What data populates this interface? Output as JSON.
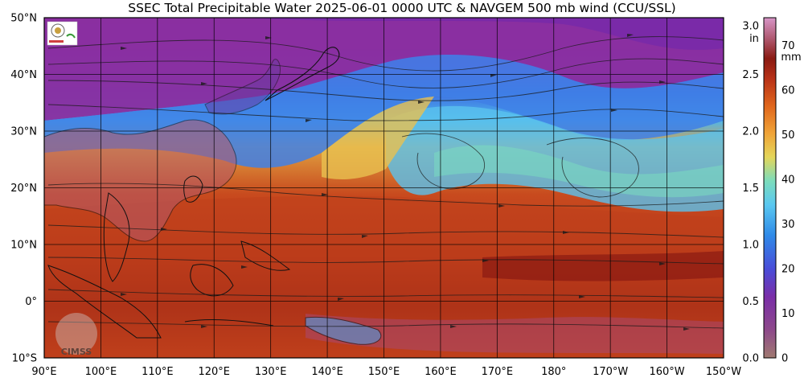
{
  "title": "SSEC Total Precipitable Water  2025-06-01 0000 UTC & NAVGEM 500 mb wind (CCU/SSL)",
  "map": {
    "lon_labels": [
      "90°E",
      "100°E",
      "110°E",
      "120°E",
      "130°E",
      "140°E",
      "150°E",
      "160°E",
      "170°E",
      "180°",
      "170°W",
      "160°W",
      "150°W"
    ],
    "lat_labels": [
      "50°N",
      "40°N",
      "30°N",
      "20°N",
      "10°N",
      "0°",
      "10°S"
    ],
    "region": "Western Pacific / East Asia",
    "lon_range": [
      90,
      210
    ],
    "lat_range": [
      -10,
      50
    ]
  },
  "colorbar": {
    "in_unit": "in",
    "mm_unit": "mm",
    "in_ticks": [
      "3.0",
      "2.5",
      "2.0",
      "1.5",
      "1.0",
      "0.5",
      "0.0"
    ],
    "mm_ticks": [
      "70",
      "60",
      "50",
      "40",
      "30",
      "20",
      "10",
      "0"
    ],
    "colors": [
      "#a0786e",
      "#8a2e9e",
      "#5b48d6",
      "#2f86e6",
      "#56c6f0",
      "#7ce0c0",
      "#e8d858",
      "#f0a036",
      "#e06a1e",
      "#c03818",
      "#8e1a10",
      "#b06070",
      "#d090c0"
    ]
  },
  "watermark": {
    "cimss": "CIMSS"
  }
}
